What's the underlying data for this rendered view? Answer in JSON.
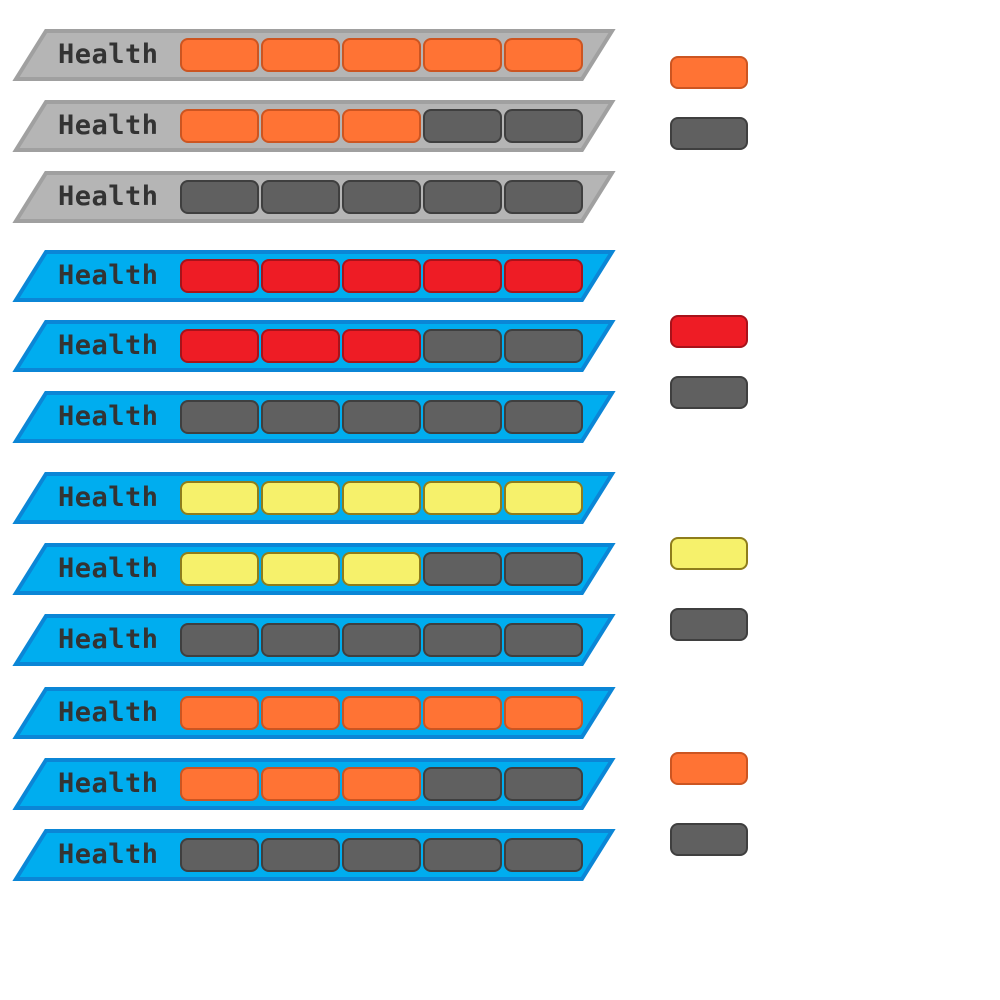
{
  "hud": {
    "label": "Health",
    "segments_total": 5,
    "bars": [
      {
        "theme": "gray",
        "fill": "orange",
        "filled": 5
      },
      {
        "theme": "gray",
        "fill": "orange",
        "filled": 3
      },
      {
        "theme": "gray",
        "fill": "orange",
        "filled": 0
      },
      {
        "theme": "blue",
        "fill": "red",
        "filled": 5
      },
      {
        "theme": "blue",
        "fill": "red",
        "filled": 3
      },
      {
        "theme": "blue",
        "fill": "red",
        "filled": 0
      },
      {
        "theme": "blue",
        "fill": "yellow",
        "filled": 5
      },
      {
        "theme": "blue",
        "fill": "yellow",
        "filled": 3
      },
      {
        "theme": "blue",
        "fill": "yellow",
        "filled": 0
      },
      {
        "theme": "blue",
        "fill": "orange",
        "filled": 5
      },
      {
        "theme": "blue",
        "fill": "orange",
        "filled": 3
      },
      {
        "theme": "blue",
        "fill": "orange",
        "filled": 0
      }
    ],
    "swatches": [
      {
        "fill": "orange"
      },
      {
        "fill": "empty"
      },
      {
        "fill": "red"
      },
      {
        "fill": "empty"
      },
      {
        "fill": "yellow"
      },
      {
        "fill": "empty"
      },
      {
        "fill": "orange"
      },
      {
        "fill": "empty"
      }
    ]
  },
  "colors": {
    "themes": {
      "gray": {
        "fill": "#b5b5b5",
        "stroke": "#a0a0a0"
      },
      "blue": {
        "fill": "#00adef",
        "stroke": "#0b86d6"
      }
    },
    "pips": {
      "orange": {
        "fill": "#ff7334",
        "stroke": "#cc5521"
      },
      "red": {
        "fill": "#ee1c25",
        "stroke": "#a8121a"
      },
      "yellow": {
        "fill": "#f6f16b",
        "stroke": "#8e7d1c"
      },
      "empty": {
        "fill": "#606060",
        "stroke": "#3f3f3f"
      }
    },
    "label_text": "#333333"
  }
}
